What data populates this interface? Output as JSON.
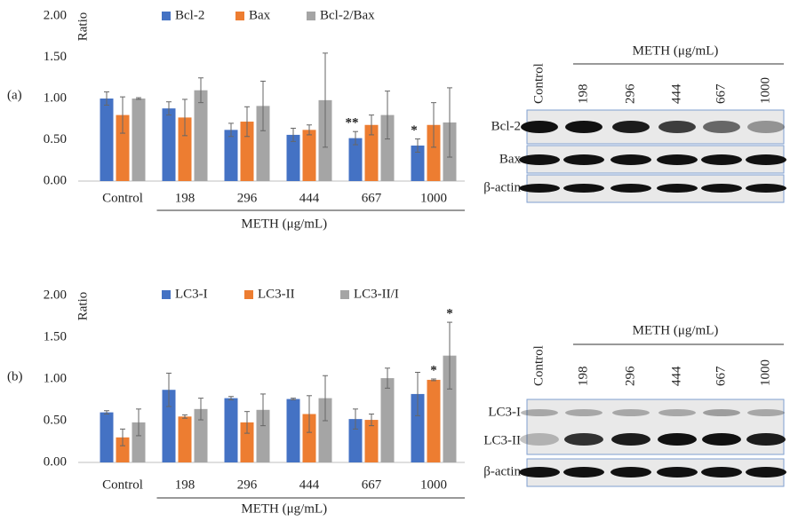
{
  "chart_data": [
    {
      "type": "bar",
      "panel": "(a)",
      "ylabel": "Ratio",
      "xlabel": "METH (μg/mL)",
      "categories": [
        "Control",
        "198",
        "296",
        "444",
        "667",
        "1000"
      ],
      "ylim": [
        0,
        2
      ],
      "yticks": [
        {
          "value": 0,
          "label": "0.00"
        },
        {
          "value": 0.5,
          "label": "0.50"
        },
        {
          "value": 1,
          "label": "1.00"
        },
        {
          "value": 1.5,
          "label": "1.50"
        },
        {
          "value": 2,
          "label": "2.00"
        }
      ],
      "grid": false,
      "series": [
        {
          "name": "Bcl-2",
          "color": "#4472c4",
          "values": [
            1.0,
            0.88,
            0.62,
            0.56,
            0.52,
            0.43
          ],
          "errors": [
            0.08,
            0.08,
            0.08,
            0.08,
            0.08,
            0.08
          ],
          "significance": [
            null,
            null,
            null,
            null,
            "**",
            "*"
          ]
        },
        {
          "name": "Bax",
          "color": "#ed7d31",
          "values": [
            0.8,
            0.77,
            0.72,
            0.62,
            0.68,
            0.68
          ],
          "errors": [
            0.22,
            0.22,
            0.18,
            0.06,
            0.12,
            0.27
          ],
          "significance": [
            null,
            null,
            null,
            null,
            null,
            null
          ]
        },
        {
          "name": "Bcl-2/Bax",
          "color": "#a5a5a5",
          "values": [
            1.0,
            1.1,
            0.91,
            0.98,
            0.8,
            0.71
          ],
          "errors": [
            0.01,
            0.15,
            0.3,
            0.57,
            0.29,
            0.42
          ],
          "significance": [
            null,
            null,
            null,
            null,
            null,
            null
          ]
        }
      ]
    },
    {
      "type": "bar",
      "panel": "(b)",
      "ylabel": "Ratio",
      "xlabel": "METH (μg/mL)",
      "categories": [
        "Control",
        "198",
        "296",
        "444",
        "667",
        "1000"
      ],
      "ylim": [
        0,
        2
      ],
      "yticks": [
        {
          "value": 0,
          "label": "0.00"
        },
        {
          "value": 0.5,
          "label": "0.50"
        },
        {
          "value": 1,
          "label": "1.00"
        },
        {
          "value": 1.5,
          "label": "1.50"
        },
        {
          "value": 2,
          "label": "2.00"
        }
      ],
      "grid": false,
      "series": [
        {
          "name": "LC3-I",
          "color": "#4472c4",
          "values": [
            0.6,
            0.87,
            0.77,
            0.76,
            0.52,
            0.82
          ],
          "errors": [
            0.02,
            0.2,
            0.02,
            0.01,
            0.12,
            0.26
          ],
          "significance": [
            null,
            null,
            null,
            null,
            null,
            null
          ]
        },
        {
          "name": "LC3-II",
          "color": "#ed7d31",
          "values": [
            0.3,
            0.55,
            0.48,
            0.58,
            0.51,
            0.99
          ],
          "errors": [
            0.1,
            0.02,
            0.13,
            0.22,
            0.07,
            0.01
          ],
          "significance": [
            null,
            null,
            null,
            null,
            null,
            "*"
          ]
        },
        {
          "name": "LC3-II/I",
          "color": "#a5a5a5",
          "values": [
            0.48,
            0.64,
            0.63,
            0.77,
            1.01,
            1.28
          ],
          "errors": [
            0.16,
            0.13,
            0.19,
            0.27,
            0.12,
            0.4
          ],
          "significance": [
            null,
            null,
            null,
            null,
            null,
            "*"
          ]
        }
      ]
    }
  ],
  "blots": [
    {
      "header": "METH (μg/mL)",
      "lanes": [
        "Control",
        "198",
        "296",
        "444",
        "667",
        "1000"
      ],
      "rows": [
        "Bcl-2",
        "Bax",
        "β-actin"
      ]
    },
    {
      "header": "METH (μg/mL)",
      "lanes": [
        "Control",
        "198",
        "296",
        "444",
        "667",
        "1000"
      ],
      "rows": [
        "LC3-I",
        "LC3-II",
        "β-actin"
      ]
    }
  ]
}
